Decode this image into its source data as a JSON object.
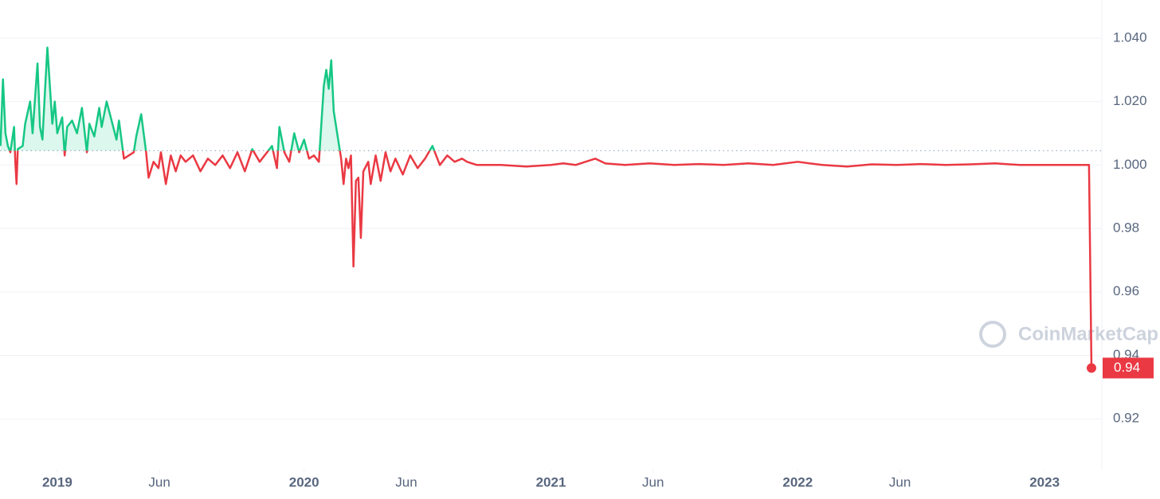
{
  "chart_data": {
    "type": "line",
    "watermark": "CoinMarketCap",
    "ylim": [
      0.904,
      1.052
    ],
    "yticks": [
      {
        "value": 1.04,
        "label": "1.040"
      },
      {
        "value": 1.02,
        "label": "1.020"
      },
      {
        "value": 1.0,
        "label": "1.000"
      },
      0.98,
      0.96,
      0.94,
      0.92
    ],
    "xlim": [
      2018.768,
      2023.232
    ],
    "xticks": [
      2019,
      {
        "value": 2019.414,
        "label": "Jun"
      },
      2020,
      {
        "value": 2020.414,
        "label": "Jun"
      },
      2021,
      {
        "value": 2021.414,
        "label": "Jun"
      },
      2022,
      {
        "value": 2022.414,
        "label": "Jun"
      },
      2023
    ],
    "grid": true,
    "baseline": 1.0045,
    "up_color": "#16c784",
    "down_color": "#ea3943",
    "last_price": {
      "value": 0.936,
      "label": "0.94"
    },
    "x": [
      2018.77,
      2018.78,
      2018.79,
      2018.8,
      2018.81,
      2018.825,
      2018.83,
      2018.835,
      2018.84,
      2018.86,
      2018.87,
      2018.89,
      2018.9,
      2018.92,
      2018.93,
      2018.94,
      2018.95,
      2018.96,
      2018.97,
      2018.98,
      2018.99,
      2019.0,
      2019.02,
      2019.03,
      2019.04,
      2019.06,
      2019.08,
      2019.1,
      2019.12,
      2019.13,
      2019.15,
      2019.17,
      2019.18,
      2019.2,
      2019.22,
      2019.24,
      2019.25,
      2019.27,
      2019.29,
      2019.31,
      2019.32,
      2019.34,
      2019.35,
      2019.36,
      2019.37,
      2019.39,
      2019.41,
      2019.42,
      2019.44,
      2019.46,
      2019.48,
      2019.5,
      2019.52,
      2019.55,
      2019.58,
      2019.61,
      2019.64,
      2019.67,
      2019.7,
      2019.73,
      2019.76,
      2019.79,
      2019.82,
      2019.85,
      2019.87,
      2019.89,
      2019.9,
      2019.92,
      2019.94,
      2019.96,
      2019.98,
      2020.0,
      2020.02,
      2020.04,
      2020.06,
      2020.08,
      2020.09,
      2020.1,
      2020.11,
      2020.12,
      2020.14,
      2020.15,
      2020.16,
      2020.17,
      2020.18,
      2020.19,
      2020.2,
      2020.21,
      2020.22,
      2020.23,
      2020.24,
      2020.26,
      2020.27,
      2020.29,
      2020.31,
      2020.33,
      2020.35,
      2020.37,
      2020.4,
      2020.43,
      2020.46,
      2020.49,
      2020.52,
      2020.55,
      2020.58,
      2020.61,
      2020.64,
      2020.66,
      2020.7,
      2020.8,
      2020.9,
      2021.0,
      2021.05,
      2021.1,
      2021.18,
      2021.22,
      2021.3,
      2021.4,
      2021.5,
      2021.6,
      2021.7,
      2021.8,
      2021.9,
      2022.0,
      2022.1,
      2022.2,
      2022.3,
      2022.4,
      2022.5,
      2022.6,
      2022.7,
      2022.8,
      2022.9,
      2023.0,
      2023.1,
      2023.18,
      2023.19
    ],
    "values": [
      1.006,
      1.027,
      1.01,
      1.006,
      1.004,
      1.012,
      1.001,
      0.994,
      1.005,
      1.006,
      1.013,
      1.02,
      1.01,
      1.032,
      1.012,
      1.008,
      1.023,
      1.037,
      1.025,
      1.013,
      1.02,
      1.01,
      1.015,
      1.003,
      1.012,
      1.014,
      1.01,
      1.018,
      1.004,
      1.013,
      1.009,
      1.018,
      1.012,
      1.02,
      1.014,
      1.008,
      1.014,
      1.002,
      1.003,
      1.004,
      1.009,
      1.016,
      1.01,
      1.004,
      0.996,
      1.001,
      0.999,
      1.004,
      0.994,
      1.003,
      0.998,
      1.003,
      1.001,
      1.003,
      0.998,
      1.002,
      1.0,
      1.003,
      0.999,
      1.004,
      0.998,
      1.005,
      1.001,
      1.004,
      1.006,
      0.999,
      1.012,
      1.004,
      1.001,
      1.01,
      1.004,
      1.008,
      1.002,
      1.003,
      1.001,
      1.025,
      1.03,
      1.024,
      1.033,
      1.017,
      1.007,
      1.002,
      0.994,
      1.002,
      0.999,
      1.003,
      0.968,
      0.995,
      0.996,
      0.977,
      0.998,
      1.001,
      0.994,
      1.003,
      0.995,
      1.004,
      0.998,
      1.002,
      0.997,
      1.003,
      0.999,
      1.002,
      1.006,
      1.0,
      1.003,
      1.001,
      1.002,
      1.001,
      1.0,
      1.0,
      0.9995,
      1.0,
      1.0005,
      1.0,
      1.002,
      1.0005,
      1.0,
      1.0005,
      1.0,
      1.0003,
      1.0,
      1.0005,
      1.0,
      1.001,
      1.0,
      0.9995,
      1.0002,
      1.0,
      1.0003,
      1.0,
      1.0002,
      1.0005,
      1.0,
      1.0,
      1.0,
      1.0,
      0.936
    ]
  }
}
